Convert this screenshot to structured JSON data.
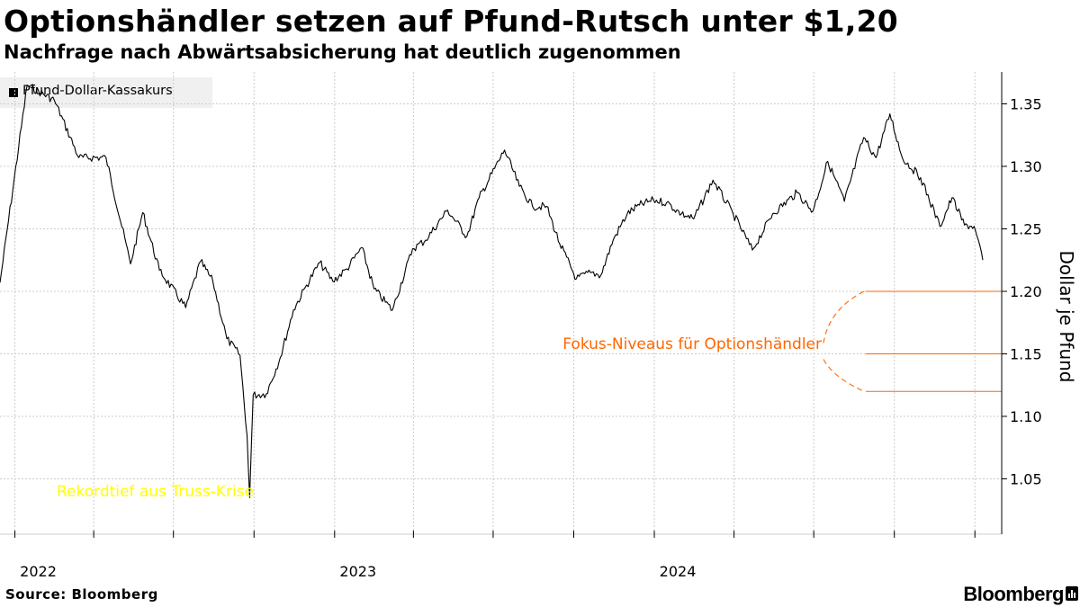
{
  "header": {
    "title": "Optionshändler setzen auf Pfund-Rutsch unter $1,20",
    "subtitle": "Nachfrage nach Abwärtsabsicherung hat deutlich zugenommen"
  },
  "footer": {
    "source": "Source: Bloomberg",
    "brand": "Bloomberg"
  },
  "colors": {
    "line": "#000000",
    "focus": "#ff6600",
    "annotation_low": "#ffff00",
    "grid": "#cccccc"
  },
  "chart_data": {
    "type": "line",
    "title": "Optionshändler setzen auf Pfund-Rutsch unter $1,20",
    "subtitle": "Nachfrage nach Abwärtsabsicherung hat deutlich zugenommen",
    "ylabel": "Dollar je Pfund",
    "legend": [
      "Pfund-Dollar-Kassakurs"
    ],
    "legend_position": "top-left",
    "grid": true,
    "ylim": [
      1.01,
      1.37
    ],
    "y_ticks": [
      "1.35",
      "1.30",
      "1.25",
      "1.20",
      "1.15",
      "1.10",
      "1.05"
    ],
    "x_ticks": [
      "2022",
      "2023",
      "2024"
    ],
    "xlim": [
      "2021-12-15",
      "2025-01-10"
    ],
    "series": [
      {
        "name": "Pfund-Dollar-Kassakurs",
        "points": [
          [
            "2021-12-15",
            1.207
          ],
          [
            "2022-01-15",
            1.365
          ],
          [
            "2022-02-15",
            1.353
          ],
          [
            "2022-03-15",
            1.307
          ],
          [
            "2022-04-15",
            1.307
          ],
          [
            "2022-05-13",
            1.222
          ],
          [
            "2022-05-27",
            1.263
          ],
          [
            "2022-06-15",
            1.217
          ],
          [
            "2022-07-15",
            1.187
          ],
          [
            "2022-08-01",
            1.224
          ],
          [
            "2022-08-15",
            1.208
          ],
          [
            "2022-08-31",
            1.162
          ],
          [
            "2022-09-15",
            1.149
          ],
          [
            "2022-09-23",
            1.085
          ],
          [
            "2022-09-26",
            1.035
          ],
          [
            "2022-09-30",
            1.117
          ],
          [
            "2022-10-15",
            1.118
          ],
          [
            "2022-10-31",
            1.147
          ],
          [
            "2022-11-15",
            1.185
          ],
          [
            "2022-11-30",
            1.205
          ],
          [
            "2022-12-15",
            1.223
          ],
          [
            "2022-12-30",
            1.208
          ],
          [
            "2023-01-15",
            1.218
          ],
          [
            "2023-02-01",
            1.235
          ],
          [
            "2023-02-15",
            1.202
          ],
          [
            "2023-03-08",
            1.185
          ],
          [
            "2023-03-31",
            1.234
          ],
          [
            "2023-04-15",
            1.241
          ],
          [
            "2023-05-10",
            1.265
          ],
          [
            "2023-06-01",
            1.244
          ],
          [
            "2023-06-15",
            1.275
          ],
          [
            "2023-07-14",
            1.313
          ],
          [
            "2023-07-31",
            1.284
          ],
          [
            "2023-08-15",
            1.268
          ],
          [
            "2023-08-31",
            1.268
          ],
          [
            "2023-09-15",
            1.238
          ],
          [
            "2023-10-04",
            1.21
          ],
          [
            "2023-10-20",
            1.215
          ],
          [
            "2023-11-01",
            1.213
          ],
          [
            "2023-11-15",
            1.241
          ],
          [
            "2023-12-01",
            1.262
          ],
          [
            "2023-12-15",
            1.269
          ],
          [
            "2023-12-31",
            1.273
          ],
          [
            "2024-01-15",
            1.271
          ],
          [
            "2024-02-01",
            1.262
          ],
          [
            "2024-02-15",
            1.258
          ],
          [
            "2024-03-08",
            1.289
          ],
          [
            "2024-03-31",
            1.262
          ],
          [
            "2024-04-22",
            1.233
          ],
          [
            "2024-05-15",
            1.262
          ],
          [
            "2024-06-12",
            1.279
          ],
          [
            "2024-06-30",
            1.264
          ],
          [
            "2024-07-17",
            1.304
          ],
          [
            "2024-08-05",
            1.272
          ],
          [
            "2024-08-27",
            1.323
          ],
          [
            "2024-09-10",
            1.307
          ],
          [
            "2024-09-26",
            1.342
          ],
          [
            "2024-10-10",
            1.307
          ],
          [
            "2024-10-31",
            1.291
          ],
          [
            "2024-11-22",
            1.252
          ],
          [
            "2024-12-06",
            1.275
          ],
          [
            "2024-12-20",
            1.253
          ],
          [
            "2024-12-31",
            1.252
          ],
          [
            "2025-01-10",
            1.225
          ]
        ]
      }
    ],
    "focus_levels": {
      "label": "Fokus-Niveaus für Optionshändler",
      "values": [
        1.2,
        1.15,
        1.12
      ]
    },
    "annotations": [
      {
        "text": "Rekordtief aus Truss-Krise",
        "x": "2022-09-26",
        "y": 1.035
      }
    ]
  }
}
